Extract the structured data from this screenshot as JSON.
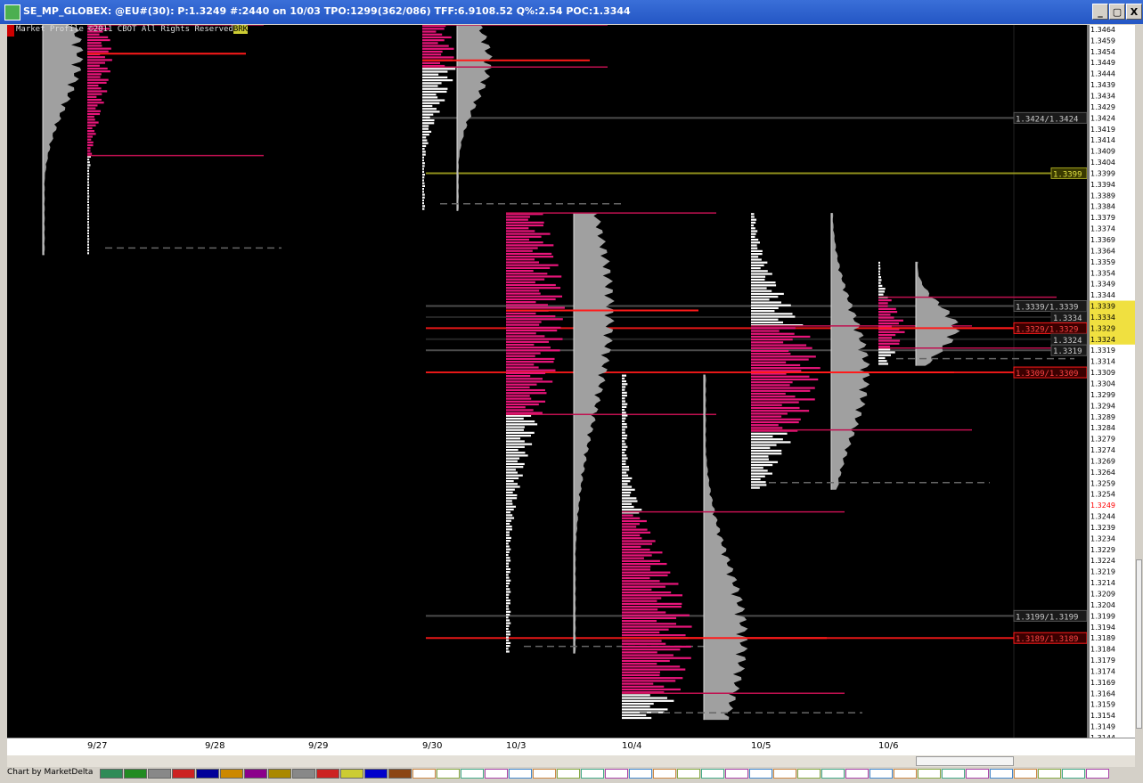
{
  "window": {
    "title": "SE_MP_GLOBEX: @EU#(30): P:1.3249 #:2440 on 10/03 TPO:1299(362/086) TFF:6.9108.52 Q%:2.54 POC:1.3344",
    "minimize_label": "_",
    "restore_label": "▢",
    "close_label": "X"
  },
  "chart_header": {
    "copyright": "Market Profile ©2011 CBOT All Rights Reserved",
    "badge": "BRK"
  },
  "footer": {
    "credit": "Chart by MarketDelta"
  },
  "colors": {
    "background": "#000000",
    "value_area": "#e8157a",
    "tpo_white": "#ffffff",
    "volume_gray": "#a0a0a0",
    "poc_line": "#ff1a1a",
    "extension_line": "#c01050",
    "olive_line": "#a0a020",
    "gray_line": "#777777",
    "highlight": "#f0e040"
  },
  "price_axis": {
    "labels": [
      "1.3464",
      "1.3459",
      "1.3454",
      "1.3449",
      "1.3444",
      "1.3439",
      "1.3434",
      "1.3429",
      "1.3424",
      "1.3419",
      "1.3414",
      "1.3409",
      "1.3404",
      "1.3399",
      "1.3394",
      "1.3389",
      "1.3384",
      "1.3379",
      "1.3374",
      "1.3369",
      "1.3364",
      "1.3359",
      "1.3354",
      "1.3349",
      "1.3344",
      "1.3339",
      "1.3334",
      "1.3329",
      "1.3324",
      "1.3319",
      "1.3314",
      "1.3309",
      "1.3304",
      "1.3299",
      "1.3294",
      "1.3289",
      "1.3284",
      "1.3279",
      "1.3274",
      "1.3269",
      "1.3264",
      "1.3259",
      "1.3254",
      "1.3249",
      "1.3244",
      "1.3239",
      "1.3234",
      "1.3229",
      "1.3224",
      "1.3219",
      "1.3214",
      "1.3209",
      "1.3204",
      "1.3199",
      "1.3194",
      "1.3189",
      "1.3184",
      "1.3179",
      "1.3174",
      "1.3169",
      "1.3164",
      "1.3159",
      "1.3154",
      "1.3149",
      "1.3144"
    ],
    "current_price": "1.3249",
    "highlight_range": [
      "1.3339",
      "1.3324"
    ]
  },
  "chart_data": {
    "type": "market-profile",
    "title": "",
    "price_range": [
      1.3144,
      1.3466
    ],
    "dates": [
      "9/27",
      "9/28",
      "9/29",
      "9/30",
      "10/3",
      "10/4",
      "10/5",
      "10/6"
    ],
    "level_tags": [
      {
        "label": "1.3424/1.3424",
        "price": 1.3424,
        "style": "gray"
      },
      {
        "label": "1.3399",
        "price": 1.3399,
        "style": "olive"
      },
      {
        "label": "1.3339/1.3339",
        "price": 1.3339,
        "style": "gray"
      },
      {
        "label": "1.3334",
        "price": 1.3334,
        "style": "dark"
      },
      {
        "label": "1.3329/1.3329",
        "price": 1.3329,
        "style": "red"
      },
      {
        "label": "1.3324",
        "price": 1.3324,
        "style": "dark"
      },
      {
        "label": "1.3319",
        "price": 1.3319,
        "style": "gray"
      },
      {
        "label": "1.3309/1.3309",
        "price": 1.3309,
        "style": "red"
      },
      {
        "label": "1.3199/1.3199",
        "price": 1.3199,
        "style": "gray"
      },
      {
        "label": "1.3189/1.3189",
        "price": 1.3189,
        "style": "red"
      }
    ],
    "profiles": [
      {
        "date": "9/27",
        "high": 1.3466,
        "low": 1.3362,
        "value_high": 1.3466,
        "value_low": 1.3407,
        "poc": 1.3453
      },
      {
        "date": "9/30",
        "high": 1.3466,
        "low": 1.3382,
        "value_high": 1.3466,
        "value_low": 1.3447,
        "poc": 1.345
      },
      {
        "date": "10/3",
        "high": 1.3381,
        "low": 1.3182,
        "value_high": 1.3381,
        "value_low": 1.329,
        "poc": 1.3337
      },
      {
        "date": "10/4",
        "high": 1.3308,
        "low": 1.3152,
        "value_high": 1.3246,
        "value_low": 1.3164,
        "poc": 1.3189
      },
      {
        "date": "10/5",
        "high": 1.3381,
        "low": 1.3256,
        "value_high": 1.333,
        "value_low": 1.3283,
        "poc": 1.3309
      },
      {
        "date": "10/6",
        "high": 1.3359,
        "low": 1.3312,
        "value_high": 1.3343,
        "value_low": 1.332,
        "poc": 1.3329
      }
    ]
  }
}
